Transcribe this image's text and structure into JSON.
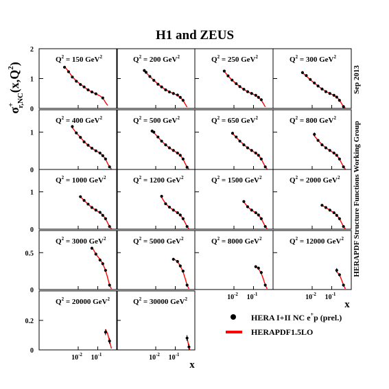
{
  "title": "H1 and ZEUS",
  "side_label_date": "Sep 2013",
  "side_label_group": "HERAPDF Structure Functions Working Group",
  "ylabel": {
    "main": "σ",
    "sup": "+",
    "sub": "r,NC",
    "args": "(x,Q",
    "args_sup": "2",
    "args_end": ")"
  },
  "xlabel": "x",
  "q2_prefix": "Q",
  "q2_exp": "2",
  "q2_unit": "GeV",
  "legend": {
    "data": "HERA I+II NC e",
    "data_sup": "+",
    "data_end": "p (prel.)",
    "fit": "HERAPDF1.5LO"
  },
  "colors": {
    "fit": "#ff0000",
    "data": "#000000",
    "frame": "#000000"
  },
  "chart_data": {
    "type": "scatter",
    "x_scale": "log",
    "xlim": [
      0.0001,
      1
    ],
    "x_ticks": [
      0.01,
      0.1
    ],
    "x_tick_labels": [
      "10",
      "10"
    ],
    "x_tick_exps": [
      "-2",
      "-1"
    ],
    "series": [
      {
        "name": "HERA I+II NC e+p (prel.)",
        "kind": "points"
      },
      {
        "name": "HERAPDF1.5LO",
        "kind": "line"
      }
    ],
    "rows": [
      {
        "ylim": [
          0,
          2
        ],
        "yticks": [
          0,
          1,
          2
        ],
        "ytick_labels": [
          "0",
          "1",
          "2"
        ]
      },
      {
        "ylim": [
          0,
          1.6
        ],
        "yticks": [
          0,
          1
        ],
        "ytick_labels": [
          "0",
          "1"
        ]
      },
      {
        "ylim": [
          0,
          1.6
        ],
        "yticks": [
          0,
          1
        ],
        "ytick_labels": [
          "0",
          "1"
        ]
      },
      {
        "ylim": [
          0,
          0.8
        ],
        "yticks": [
          0,
          0.5
        ],
        "ytick_labels": [
          "0",
          "0.5"
        ]
      },
      {
        "ylim": [
          0,
          0.4
        ],
        "yticks": [
          0,
          0.2
        ],
        "ytick_labels": [
          "0",
          "0.2"
        ]
      }
    ],
    "panels": [
      {
        "q2": "150",
        "row": 0,
        "col": 0,
        "x": [
          0.002,
          0.0032,
          0.005,
          0.008,
          0.013,
          0.02,
          0.032,
          0.05,
          0.08,
          0.18
        ],
        "y": [
          1.38,
          1.23,
          1.05,
          0.91,
          0.8,
          0.72,
          0.62,
          0.55,
          0.49,
          0.35
        ],
        "err": [
          0.04,
          0.03,
          0.02,
          0.02,
          0.02,
          0.02,
          0.02,
          0.02,
          0.02,
          0.02
        ],
        "fit_x": [
          0.002,
          0.0032,
          0.005,
          0.008,
          0.013,
          0.02,
          0.032,
          0.05,
          0.08,
          0.13,
          0.18,
          0.25,
          0.32
        ],
        "fit_y": [
          1.4,
          1.24,
          1.06,
          0.92,
          0.81,
          0.72,
          0.62,
          0.55,
          0.49,
          0.42,
          0.35,
          0.2,
          0.1
        ]
      },
      {
        "q2": "200",
        "row": 0,
        "col": 1,
        "x": [
          0.0026,
          0.0032,
          0.005,
          0.008,
          0.013,
          0.02,
          0.032,
          0.05,
          0.08,
          0.13,
          0.18,
          0.25
        ],
        "y": [
          1.27,
          1.21,
          1.07,
          0.94,
          0.81,
          0.72,
          0.62,
          0.55,
          0.5,
          0.45,
          0.37,
          0.27
        ],
        "err": [
          0.04,
          0.03,
          0.02,
          0.02,
          0.02,
          0.02,
          0.02,
          0.02,
          0.02,
          0.02,
          0.02,
          0.02
        ],
        "fit_x": [
          0.0026,
          0.0032,
          0.005,
          0.008,
          0.013,
          0.02,
          0.032,
          0.05,
          0.08,
          0.13,
          0.18,
          0.25,
          0.32,
          0.4
        ],
        "fit_y": [
          1.28,
          1.2,
          1.07,
          0.94,
          0.82,
          0.72,
          0.63,
          0.56,
          0.5,
          0.44,
          0.37,
          0.27,
          0.15,
          0.04
        ]
      },
      {
        "q2": "250",
        "row": 0,
        "col": 2,
        "x": [
          0.0032,
          0.005,
          0.008,
          0.013,
          0.02,
          0.032,
          0.05,
          0.08,
          0.13,
          0.18,
          0.25
        ],
        "y": [
          1.25,
          1.09,
          0.95,
          0.83,
          0.73,
          0.64,
          0.56,
          0.5,
          0.44,
          0.37,
          0.29
        ],
        "err": [
          0.04,
          0.02,
          0.02,
          0.02,
          0.02,
          0.02,
          0.02,
          0.02,
          0.02,
          0.02,
          0.02
        ],
        "fit_x": [
          0.0032,
          0.005,
          0.008,
          0.013,
          0.02,
          0.032,
          0.05,
          0.08,
          0.13,
          0.18,
          0.25,
          0.32,
          0.4
        ],
        "fit_y": [
          1.24,
          1.09,
          0.95,
          0.83,
          0.73,
          0.64,
          0.56,
          0.5,
          0.44,
          0.37,
          0.28,
          0.16,
          0.05
        ]
      },
      {
        "q2": "300",
        "row": 0,
        "col": 3,
        "x": [
          0.0032,
          0.005,
          0.008,
          0.013,
          0.02,
          0.032,
          0.05,
          0.08,
          0.13,
          0.18,
          0.25,
          0.4
        ],
        "y": [
          1.2,
          1.1,
          0.97,
          0.85,
          0.75,
          0.65,
          0.56,
          0.5,
          0.44,
          0.38,
          0.27,
          0.06
        ],
        "err": [
          0.05,
          0.02,
          0.02,
          0.02,
          0.02,
          0.02,
          0.02,
          0.02,
          0.02,
          0.02,
          0.02,
          0.02
        ],
        "fit_x": [
          0.0032,
          0.005,
          0.008,
          0.013,
          0.02,
          0.032,
          0.05,
          0.08,
          0.13,
          0.18,
          0.25,
          0.32,
          0.4,
          0.5
        ],
        "fit_y": [
          1.19,
          1.09,
          0.96,
          0.85,
          0.75,
          0.65,
          0.57,
          0.5,
          0.44,
          0.38,
          0.28,
          0.16,
          0.06,
          0.01
        ]
      },
      {
        "q2": "400",
        "row": 1,
        "col": 0,
        "x": [
          0.005,
          0.008,
          0.013,
          0.02,
          0.032,
          0.05,
          0.08,
          0.13,
          0.18,
          0.25,
          0.4
        ],
        "y": [
          1.15,
          0.98,
          0.86,
          0.74,
          0.65,
          0.57,
          0.5,
          0.44,
          0.37,
          0.28,
          0.07
        ],
        "err": [
          0.04,
          0.02,
          0.02,
          0.02,
          0.02,
          0.02,
          0.02,
          0.02,
          0.02,
          0.02,
          0.02
        ],
        "fit_x": [
          0.005,
          0.008,
          0.013,
          0.02,
          0.032,
          0.05,
          0.08,
          0.13,
          0.18,
          0.25,
          0.32,
          0.4,
          0.5
        ],
        "fit_y": [
          1.12,
          0.98,
          0.86,
          0.75,
          0.65,
          0.57,
          0.5,
          0.44,
          0.37,
          0.28,
          0.16,
          0.07,
          0.01
        ]
      },
      {
        "q2": "500",
        "row": 1,
        "col": 1,
        "x": [
          0.0065,
          0.008,
          0.013,
          0.02,
          0.032,
          0.05,
          0.08,
          0.13,
          0.18,
          0.25,
          0.4
        ],
        "y": [
          1.03,
          1.0,
          0.87,
          0.76,
          0.66,
          0.58,
          0.51,
          0.44,
          0.38,
          0.28,
          0.06
        ],
        "err": [
          0.04,
          0.03,
          0.02,
          0.02,
          0.02,
          0.02,
          0.02,
          0.02,
          0.02,
          0.02,
          0.02
        ],
        "fit_x": [
          0.0065,
          0.008,
          0.013,
          0.02,
          0.032,
          0.05,
          0.08,
          0.13,
          0.18,
          0.25,
          0.32,
          0.4,
          0.5
        ],
        "fit_y": [
          1.03,
          0.99,
          0.87,
          0.76,
          0.66,
          0.58,
          0.51,
          0.44,
          0.38,
          0.28,
          0.16,
          0.06,
          0.01
        ]
      },
      {
        "q2": "650",
        "row": 1,
        "col": 2,
        "x": [
          0.0085,
          0.013,
          0.02,
          0.032,
          0.05,
          0.08,
          0.13,
          0.18,
          0.25,
          0.4
        ],
        "y": [
          0.97,
          0.87,
          0.76,
          0.66,
          0.58,
          0.51,
          0.44,
          0.38,
          0.28,
          0.07
        ],
        "err": [
          0.04,
          0.02,
          0.02,
          0.02,
          0.02,
          0.02,
          0.02,
          0.02,
          0.02,
          0.02
        ],
        "fit_x": [
          0.0085,
          0.013,
          0.02,
          0.032,
          0.05,
          0.08,
          0.13,
          0.18,
          0.25,
          0.32,
          0.4,
          0.5
        ],
        "fit_y": [
          0.96,
          0.87,
          0.76,
          0.67,
          0.58,
          0.51,
          0.44,
          0.38,
          0.28,
          0.17,
          0.07,
          0.01
        ]
      },
      {
        "q2": "800",
        "row": 1,
        "col": 3,
        "x": [
          0.013,
          0.02,
          0.032,
          0.05,
          0.08,
          0.13,
          0.18,
          0.25,
          0.4
        ],
        "y": [
          0.94,
          0.78,
          0.66,
          0.58,
          0.51,
          0.44,
          0.38,
          0.28,
          0.07
        ],
        "err": [
          0.05,
          0.03,
          0.02,
          0.02,
          0.02,
          0.02,
          0.02,
          0.02,
          0.02
        ],
        "fit_x": [
          0.013,
          0.02,
          0.032,
          0.05,
          0.08,
          0.13,
          0.18,
          0.25,
          0.32,
          0.4,
          0.5
        ],
        "fit_y": [
          0.9,
          0.78,
          0.67,
          0.58,
          0.51,
          0.44,
          0.38,
          0.28,
          0.17,
          0.07,
          0.01
        ]
      },
      {
        "q2": "1000",
        "row": 2,
        "col": 0,
        "x": [
          0.013,
          0.02,
          0.032,
          0.05,
          0.08,
          0.13,
          0.18,
          0.25,
          0.4
        ],
        "y": [
          0.87,
          0.77,
          0.67,
          0.58,
          0.51,
          0.45,
          0.37,
          0.28,
          0.07
        ],
        "err": [
          0.03,
          0.02,
          0.02,
          0.02,
          0.02,
          0.02,
          0.02,
          0.02,
          0.02
        ],
        "fit_x": [
          0.013,
          0.02,
          0.032,
          0.05,
          0.08,
          0.13,
          0.18,
          0.25,
          0.32,
          0.4,
          0.5
        ],
        "fit_y": [
          0.87,
          0.77,
          0.67,
          0.58,
          0.51,
          0.44,
          0.38,
          0.28,
          0.17,
          0.07,
          0.01
        ]
      },
      {
        "q2": "1200",
        "row": 2,
        "col": 1,
        "x": [
          0.02,
          0.032,
          0.05,
          0.08,
          0.13,
          0.18,
          0.25,
          0.4
        ],
        "y": [
          0.88,
          0.68,
          0.59,
          0.51,
          0.44,
          0.38,
          0.28,
          0.07
        ],
        "err": [
          0.03,
          0.02,
          0.02,
          0.02,
          0.02,
          0.02,
          0.02,
          0.02
        ],
        "fit_x": [
          0.02,
          0.032,
          0.05,
          0.08,
          0.13,
          0.18,
          0.25,
          0.32,
          0.4,
          0.5
        ],
        "fit_y": [
          0.85,
          0.68,
          0.59,
          0.51,
          0.44,
          0.38,
          0.28,
          0.17,
          0.07,
          0.01
        ]
      },
      {
        "q2": "1500",
        "row": 2,
        "col": 2,
        "x": [
          0.032,
          0.05,
          0.08,
          0.13,
          0.18,
          0.25,
          0.4
        ],
        "y": [
          0.74,
          0.6,
          0.51,
          0.44,
          0.38,
          0.28,
          0.07
        ],
        "err": [
          0.03,
          0.02,
          0.02,
          0.02,
          0.02,
          0.02,
          0.02
        ],
        "fit_x": [
          0.032,
          0.05,
          0.08,
          0.13,
          0.18,
          0.25,
          0.32,
          0.4,
          0.5
        ],
        "fit_y": [
          0.73,
          0.6,
          0.51,
          0.44,
          0.38,
          0.28,
          0.17,
          0.07,
          0.01
        ]
      },
      {
        "q2": "2000",
        "row": 2,
        "col": 3,
        "x": [
          0.032,
          0.05,
          0.08,
          0.13,
          0.18,
          0.25,
          0.4
        ],
        "y": [
          0.64,
          0.58,
          0.51,
          0.44,
          0.37,
          0.28,
          0.07
        ],
        "err": [
          0.03,
          0.02,
          0.02,
          0.02,
          0.02,
          0.02,
          0.02
        ],
        "fit_x": [
          0.032,
          0.05,
          0.08,
          0.13,
          0.18,
          0.25,
          0.32,
          0.4,
          0.5
        ],
        "fit_y": [
          0.64,
          0.58,
          0.51,
          0.44,
          0.38,
          0.28,
          0.17,
          0.07,
          0.01
        ]
      },
      {
        "q2": "3000",
        "row": 3,
        "col": 0,
        "x": [
          0.05,
          0.08,
          0.13,
          0.18,
          0.25,
          0.4
        ],
        "y": [
          0.56,
          0.48,
          0.4,
          0.35,
          0.26,
          0.06
        ],
        "err": [
          0.02,
          0.02,
          0.02,
          0.02,
          0.02,
          0.02
        ],
        "fit_x": [
          0.05,
          0.08,
          0.13,
          0.18,
          0.25,
          0.32,
          0.4,
          0.5
        ],
        "fit_y": [
          0.58,
          0.48,
          0.41,
          0.35,
          0.26,
          0.16,
          0.06,
          0.01
        ]
      },
      {
        "q2": "5000",
        "row": 3,
        "col": 1,
        "x": [
          0.08,
          0.13,
          0.18,
          0.25,
          0.4
        ],
        "y": [
          0.41,
          0.38,
          0.32,
          0.25,
          0.06
        ],
        "err": [
          0.02,
          0.02,
          0.02,
          0.02,
          0.02
        ],
        "fit_x": [
          0.08,
          0.13,
          0.18,
          0.25,
          0.32,
          0.4,
          0.5
        ],
        "fit_y": [
          0.42,
          0.38,
          0.32,
          0.24,
          0.15,
          0.06,
          0.01
        ]
      },
      {
        "q2": "8000",
        "row": 3,
        "col": 2,
        "x": [
          0.13,
          0.18,
          0.25,
          0.4
        ],
        "y": [
          0.31,
          0.29,
          0.23,
          0.06
        ],
        "err": [
          0.02,
          0.02,
          0.02,
          0.02
        ],
        "fit_x": [
          0.13,
          0.18,
          0.25,
          0.32,
          0.4,
          0.5
        ],
        "fit_y": [
          0.32,
          0.28,
          0.22,
          0.14,
          0.06,
          0.01
        ]
      },
      {
        "q2": "12000",
        "row": 3,
        "col": 3,
        "x": [
          0.18,
          0.25,
          0.4
        ],
        "y": [
          0.26,
          0.2,
          0.06
        ],
        "err": [
          0.03,
          0.02,
          0.02
        ],
        "fit_x": [
          0.18,
          0.25,
          0.32,
          0.4,
          0.5
        ],
        "fit_y": [
          0.24,
          0.2,
          0.13,
          0.06,
          0.01
        ]
      },
      {
        "q2": "20000",
        "row": 4,
        "col": 0,
        "x": [
          0.25,
          0.4
        ],
        "y": [
          0.12,
          0.06
        ],
        "err": [
          0.02,
          0.02
        ],
        "fit_x": [
          0.25,
          0.32,
          0.4,
          0.5
        ],
        "fit_y": [
          0.14,
          0.11,
          0.06,
          0.01
        ]
      },
      {
        "q2": "30000",
        "row": 4,
        "col": 1,
        "x": [
          0.4,
          0.5
        ],
        "y": [
          0.08,
          0.02
        ],
        "err": [
          0.02,
          0.02
        ],
        "fit_x": [
          0.4,
          0.45,
          0.5,
          0.55
        ],
        "fit_y": [
          0.08,
          0.05,
          0.02,
          0.0
        ]
      }
    ]
  }
}
